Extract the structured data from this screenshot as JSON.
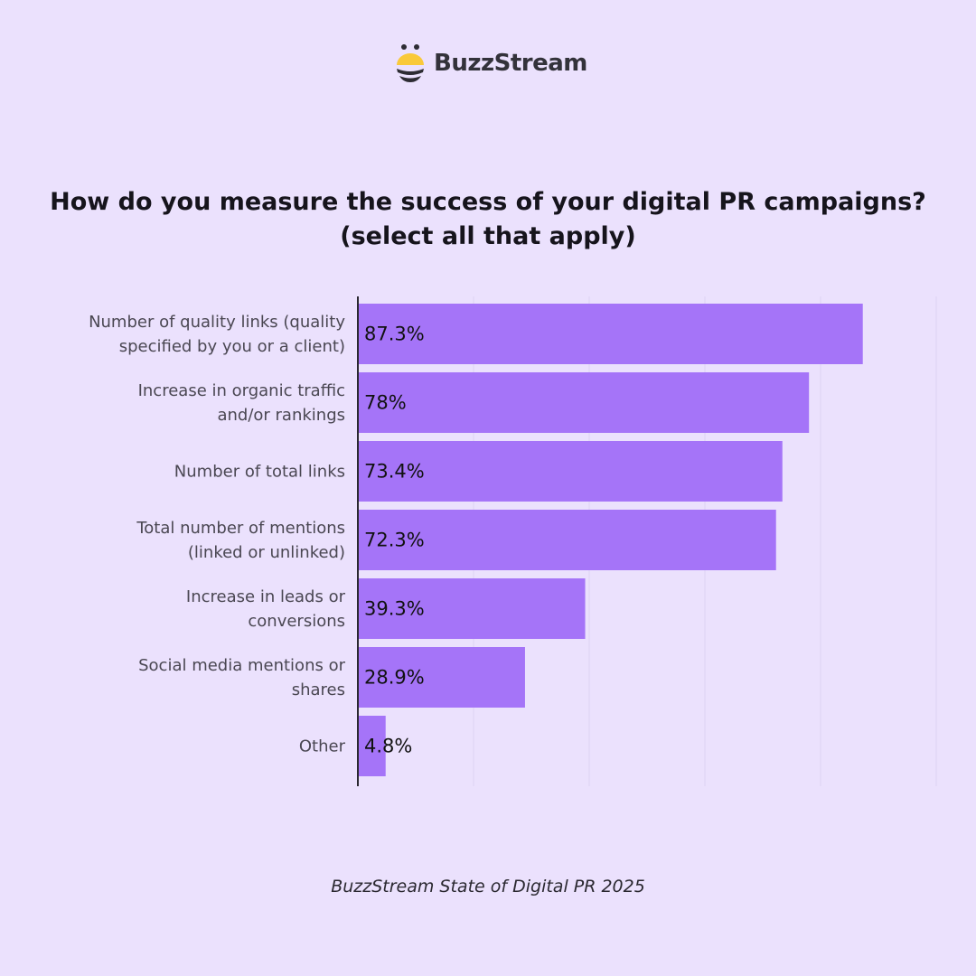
{
  "brand": {
    "name": "BuzzStream",
    "logo_icon": "bee-icon",
    "colors": {
      "yellow": "#f9c93a",
      "dark": "#2d2c33"
    }
  },
  "title_line1": "How do you measure the success of your digital PR campaigns?",
  "title_line2": "(select all that apply)",
  "source": "BuzzStream State of Digital PR 2025",
  "chart_data": {
    "type": "bar",
    "orientation": "horizontal",
    "categories": [
      [
        "Number of quality links (quality",
        "specified by you or a client)"
      ],
      [
        "Increase in organic traffic",
        "and/or rankings"
      ],
      [
        "Number of total links"
      ],
      [
        "Total number of mentions",
        "(linked or unlinked)"
      ],
      [
        "Increase in leads or",
        "conversions"
      ],
      [
        "Social media mentions or",
        "shares"
      ],
      [
        "Other"
      ]
    ],
    "values": [
      87.3,
      78,
      73.4,
      72.3,
      39.3,
      28.9,
      4.8
    ],
    "data_labels": [
      "87.3%",
      "78%",
      "73.4%",
      "72.3%",
      "39.3%",
      "28.9%",
      "4.8%"
    ],
    "xlim": [
      0,
      100
    ],
    "gridlines": [
      20,
      40,
      60,
      80,
      100
    ],
    "grid": true,
    "bar_color": "#a574f8",
    "background": "#ebe1fd"
  }
}
